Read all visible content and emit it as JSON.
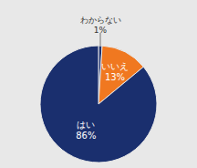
{
  "chart_data": {
    "type": "pie",
    "categories": [
      "わからない",
      "いいえ",
      "はい"
    ],
    "values": [
      1,
      13,
      86
    ],
    "value_labels": [
      "1%",
      "13%",
      "86%"
    ],
    "colors": [
      "#1a2f6e",
      "#f07820",
      "#1a2f6e"
    ],
    "data_labels": true
  }
}
